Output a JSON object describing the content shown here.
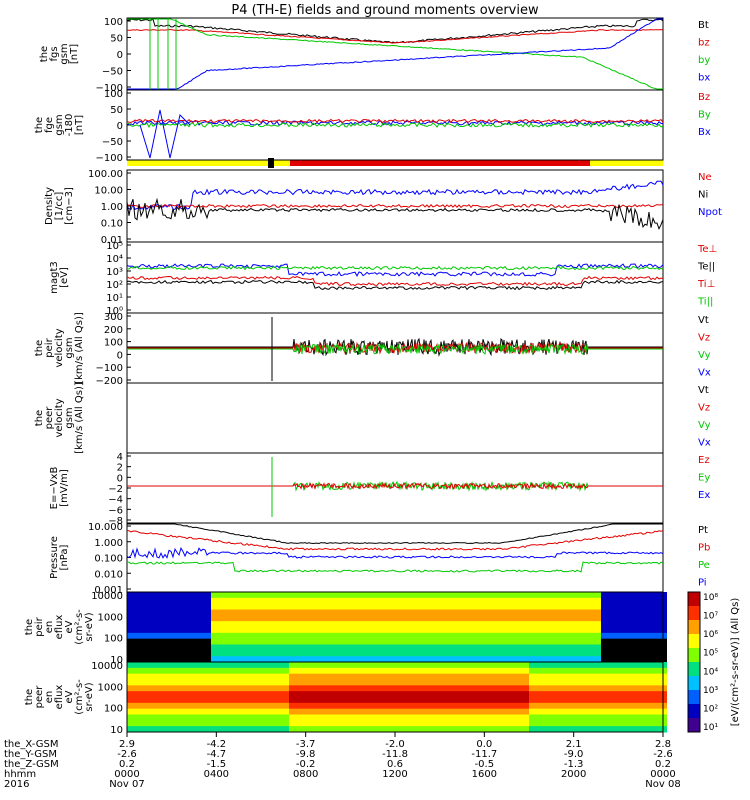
{
  "title": "P4 (TH-E) fields and ground moments overview",
  "colors": {
    "black": "#000000",
    "red": "#e00000",
    "green": "#00c800",
    "blue": "#0000ff",
    "yellow": "#ffff00"
  },
  "chart_data": {
    "type": "line",
    "x_ticks": [
      "0000\nNov 07",
      "0400",
      "0800",
      "1200",
      "1600",
      "2000",
      "0000\nNov 08"
    ],
    "panels": [
      {
        "key": "fgs",
        "ylabel": [
          "the",
          "fgs",
          "gsm",
          "[nT]"
        ],
        "ticks": [
          "100",
          "50",
          "0",
          "−50",
          "−100"
        ],
        "ylim": [
          -100,
          100
        ],
        "legend": [
          [
            "Bt",
            "black"
          ],
          [
            "bz",
            "red"
          ],
          [
            "by",
            "green"
          ],
          [
            "bx",
            "blue"
          ]
        ]
      },
      {
        "key": "fge",
        "ylabel": [
          "the",
          "fge",
          "gsm",
          "-180",
          "[nT]"
        ],
        "ticks": [
          "100",
          "50",
          "0",
          "−50",
          "−100"
        ],
        "ylim": [
          -120,
          110
        ],
        "legend": [
          [
            "Bz",
            "red"
          ],
          [
            "By",
            "green"
          ],
          [
            "Bx",
            "blue"
          ]
        ]
      },
      {
        "key": "dens",
        "ylabel": [
          "Density",
          "[1/cc]",
          "[cm−3]"
        ],
        "ticks": [
          "100.00",
          "10.00",
          "1.00",
          "0.10",
          "0.01"
        ],
        "log": true,
        "legend": [
          [
            "Ne",
            "red"
          ],
          [
            "Ni",
            "black"
          ],
          [
            "Npot",
            "blue"
          ]
        ]
      },
      {
        "key": "temp",
        "ylabel": [
          "magt3",
          "[eV]"
        ],
        "ticks": [
          "10⁵",
          "10⁴",
          "10³",
          "10²",
          "10¹",
          "10⁰"
        ],
        "log": true,
        "legend": [
          [
            "Te⊥",
            "red"
          ],
          [
            "Te||",
            "black"
          ],
          [
            "Ti⊥",
            "red"
          ],
          [
            "Ti||",
            "green"
          ]
        ]
      },
      {
        "key": "peir",
        "ylabel": [
          "the",
          "peir",
          "velocity",
          "gsm",
          "[km/s (All Qs)]"
        ],
        "ticks": [
          "300",
          "200",
          "100",
          "0",
          "−100",
          "−200"
        ],
        "ylim": [
          -200,
          300
        ],
        "legend": [
          [
            "Vt",
            "black"
          ],
          [
            "Vz",
            "red"
          ],
          [
            "Vy",
            "green"
          ],
          [
            "Vx",
            "blue"
          ]
        ]
      },
      {
        "key": "peer",
        "ylabel": [
          "the",
          "peer",
          "velocity",
          "gsm",
          "[km/s (All Qs)]"
        ],
        "ticks": [],
        "legend": [
          [
            "Vt",
            "black"
          ],
          [
            "Vz",
            "red"
          ],
          [
            "Vy",
            "green"
          ],
          [
            "Vx",
            "blue"
          ]
        ]
      },
      {
        "key": "efield",
        "ylabel": [
          "E=−VxB",
          "[mV/m]"
        ],
        "ticks": [
          "4",
          "2",
          "0",
          "−2",
          "−4",
          "−6",
          "−8"
        ],
        "ylim": [
          -8,
          4
        ],
        "legend": [
          [
            "Ez",
            "red"
          ],
          [
            "Ey",
            "green"
          ],
          [
            "Ex",
            "blue"
          ]
        ]
      },
      {
        "key": "press",
        "ylabel": [
          "Pressure",
          "[nPa]"
        ],
        "ticks": [
          "10.000",
          "1.000",
          "0.100",
          "0.010",
          "0.001"
        ],
        "log": true,
        "legend": [
          [
            "Pt",
            "black"
          ],
          [
            "Pb",
            "red"
          ],
          [
            "Pe",
            "green"
          ],
          [
            "Pi",
            "blue"
          ]
        ]
      },
      {
        "key": "peir_spec",
        "ylabel": [
          "the",
          "peir",
          "en",
          "eflux",
          "eV",
          "(cm²-s-",
          "sr-eV)"
        ],
        "ticks": [
          "10000",
          "1000",
          "100",
          "10"
        ],
        "type": "heatmap"
      },
      {
        "key": "peer_spec",
        "ylabel": [
          "the",
          "peer",
          "en",
          "eflux",
          "eV",
          "(cm²-s-",
          "sr-eV)"
        ],
        "ticks": [
          "10000",
          "1000",
          "100",
          "10"
        ],
        "type": "heatmap"
      }
    ],
    "colorbar": {
      "label": "[eV/(cm²-s-sr-eV)] (All Qs)",
      "ticks": [
        "10⁸",
        "10⁷",
        "10⁶",
        "10⁵",
        "10⁴",
        "10³",
        "10²",
        "10¹"
      ]
    },
    "ephemeris": {
      "rows": [
        "the_X-GSM",
        "the_Y-GSM",
        "the_Z-GSM",
        "hhmm",
        "2016"
      ],
      "values": [
        [
          "2.9",
          "-4.2",
          "-3.7",
          "-2.0",
          "0.0",
          "2.1",
          "2.8"
        ],
        [
          "-2.6",
          "-4.7",
          "-9.8",
          "-11.8",
          "-11.7",
          "-9.0",
          "-2.6"
        ],
        [
          "0.2",
          "-1.5",
          "-0.2",
          "0.6",
          "-0.5",
          "-1.3",
          "0.2"
        ]
      ],
      "dates": [
        "Nov 07",
        "Nov 08"
      ]
    }
  }
}
